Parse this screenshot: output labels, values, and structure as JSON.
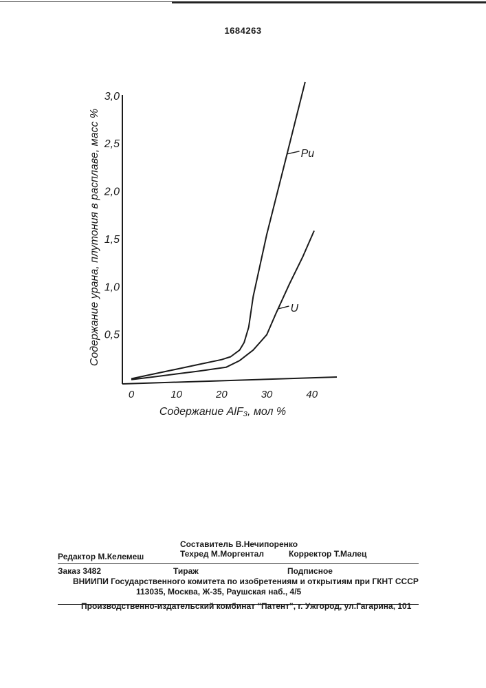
{
  "patent_number": "1684263",
  "chart_data": {
    "type": "line",
    "xlabel": "Содержание AlF₃, мол %",
    "ylabel": "Содержание урана, плутония в расплаве, масс %",
    "xlim": [
      0,
      44
    ],
    "ylim": [
      0,
      3.15
    ],
    "x_ticks": [
      "0",
      "10",
      "20",
      "30",
      "40"
    ],
    "x_tick_values": [
      0,
      10,
      20,
      30,
      40
    ],
    "y_ticks": [
      "0,5",
      "1,0",
      "1,5",
      "2,0",
      "2,5",
      "3,0"
    ],
    "y_tick_values": [
      0.5,
      1.0,
      1.5,
      2.0,
      2.5,
      3.0
    ],
    "grid": false,
    "series": [
      {
        "name": "Pu",
        "color": "#1a1a1a",
        "x": [
          0,
          5,
          10,
          15,
          20,
          22,
          24,
          25,
          26,
          27,
          30,
          34,
          38.5
        ],
        "y": [
          0.04,
          0.09,
          0.14,
          0.19,
          0.24,
          0.27,
          0.34,
          0.42,
          0.58,
          0.9,
          1.55,
          2.3,
          3.15
        ]
      },
      {
        "name": "U",
        "color": "#1a1a1a",
        "x": [
          0,
          5,
          10,
          15,
          21,
          24,
          27,
          30,
          32,
          35,
          38,
          40.5
        ],
        "y": [
          0.03,
          0.06,
          0.09,
          0.12,
          0.16,
          0.23,
          0.34,
          0.5,
          0.72,
          1.03,
          1.32,
          1.59
        ]
      }
    ]
  },
  "footer": {
    "compiler_label": "Составитель",
    "compiler_name": "В.Нечипоренко",
    "editor_label": "Редактор",
    "editor_name": "М.Келемеш",
    "techred_label": "Техред",
    "techred_name": "М.Моргентал",
    "corrector_label": "Корректор",
    "corrector_name": "Т.Малец",
    "order_label": "Заказ",
    "order_number": "3482",
    "circulation": "Тираж",
    "subscription": "Подписное",
    "institute": "ВНИИПИ Государственного комитета по изобретениям и открытиям при ГКНТ СССР",
    "address": "113035, Москва, Ж-35, Раушская наб., 4/5",
    "publisher": "Производственно-издательский комбинат \"Патент\", г. Ужгород, ул.Гагарина, 101"
  }
}
